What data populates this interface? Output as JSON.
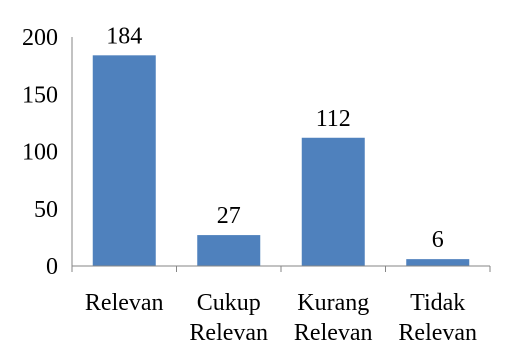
{
  "chart_data": {
    "type": "bar",
    "title": "",
    "xlabel": "",
    "ylabel": "",
    "categories": [
      [
        "Relevan"
      ],
      [
        "Cukup",
        "Relevan"
      ],
      [
        "Kurang",
        "Relevan"
      ],
      [
        "Tidak",
        "Relevan"
      ]
    ],
    "values": [
      184,
      27,
      112,
      6
    ],
    "data_labels": [
      "184",
      "27",
      "112",
      "6"
    ],
    "ylim": [
      0,
      200
    ],
    "yticks": [
      0,
      50,
      100,
      150,
      200
    ],
    "ytick_labels": [
      "0",
      "50",
      "100",
      "150",
      "200"
    ],
    "grid": false,
    "legend": "none",
    "bar_color": "#4f81bd",
    "axis_color": "#868686"
  }
}
